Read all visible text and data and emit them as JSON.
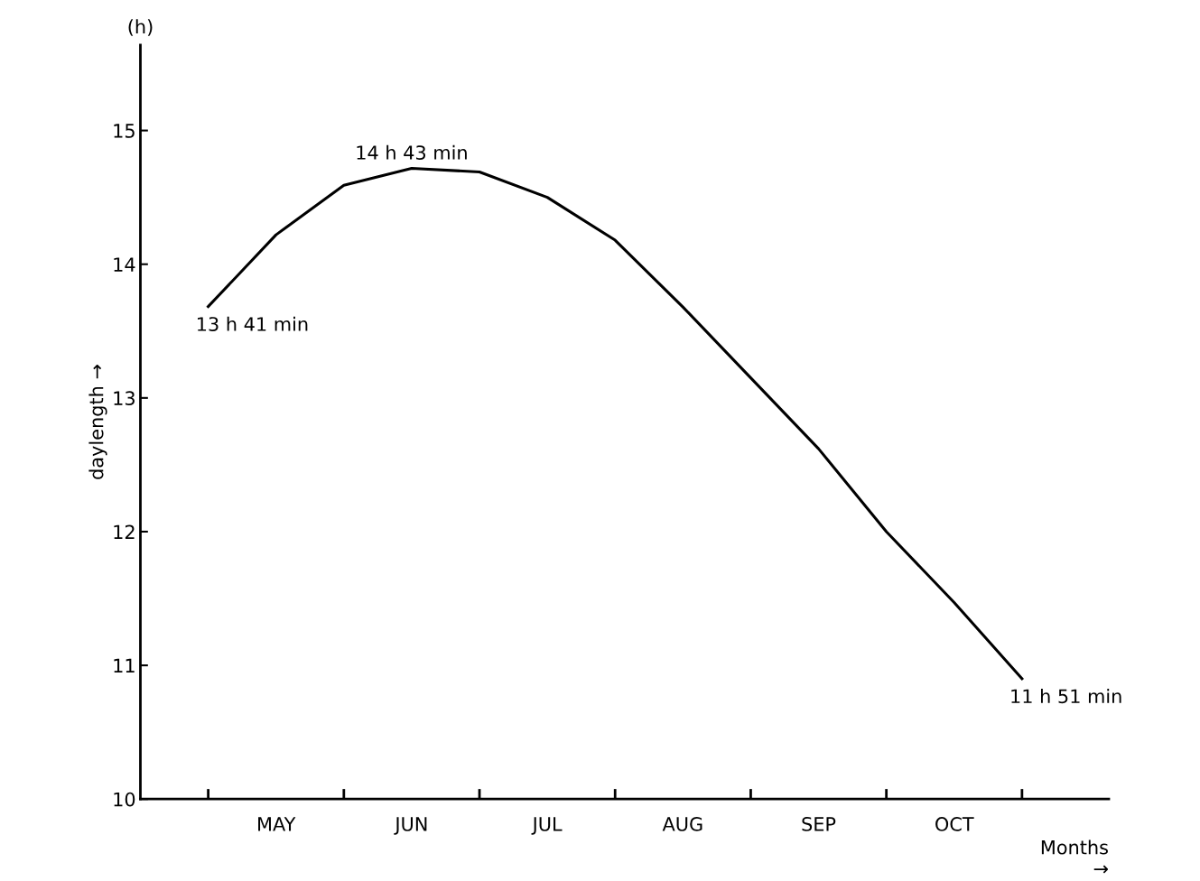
{
  "chart_data": {
    "type": "line",
    "xlabel": "Months\n→",
    "ylabel": "daylength →",
    "categories": [
      null,
      "MAY",
      null,
      "JUN",
      null,
      "JUL",
      null,
      "AUG",
      null,
      "SEP",
      null,
      "OCT",
      null
    ],
    "series": [
      {
        "color": "#000000",
        "values": [
          13.683,
          14.22,
          14.59,
          14.717,
          14.69,
          14.5,
          14.18,
          13.68,
          13.15,
          12.62,
          12.0,
          11.47,
          10.9
        ]
      }
    ],
    "ylim": [
      10,
      15.64
    ],
    "yticks": [
      10,
      11,
      12,
      13,
      14,
      15
    ],
    "annotations": [
      "(h)",
      "13 h 41 min",
      {
        "text": "14 h 43 min",
        "y": 14.717
      },
      "11 h 51 min"
    ],
    "grid": false,
    "legend": false,
    "marker": "none",
    "line_style": "solid"
  }
}
